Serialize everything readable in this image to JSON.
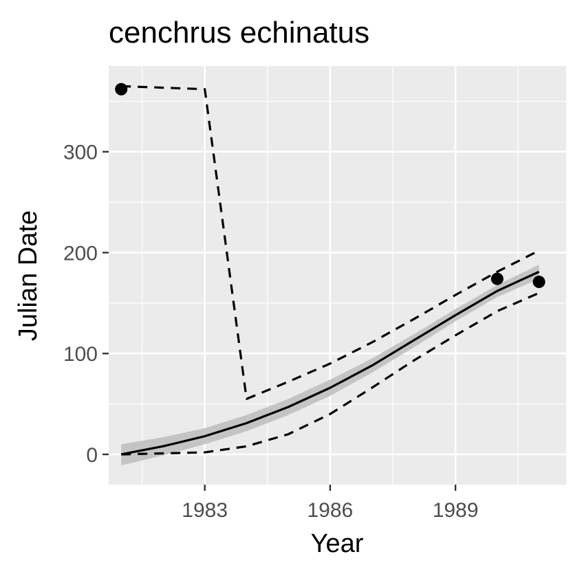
{
  "chart_data": {
    "type": "line",
    "title": "cenchrus echinatus",
    "xlabel": "Year",
    "ylabel": "Julian Date",
    "xlim": [
      1980.7,
      1991.65
    ],
    "ylim": [
      -30,
      385
    ],
    "x_ticks": [
      1983,
      1986,
      1989
    ],
    "x_tick_labels": [
      "1983",
      "1986",
      "1989"
    ],
    "y_ticks": [
      0,
      100,
      200,
      300
    ],
    "y_tick_labels": [
      "0",
      "100",
      "200",
      "300"
    ],
    "grid": true,
    "legend": "none",
    "colors": {
      "panel": "#ebebeb",
      "grid": "#ffffff",
      "line": "#000000",
      "ribbon": "#bdbdbd",
      "tick_text": "#4d4d4d"
    },
    "points": {
      "name": "observed",
      "x": [
        1981,
        1990,
        1991
      ],
      "y": [
        362,
        174,
        171
      ]
    },
    "series": [
      {
        "name": "fit",
        "style": "solid",
        "x": [
          1981,
          1982,
          1983,
          1984,
          1985,
          1986,
          1987,
          1988,
          1989,
          1990,
          1991
        ],
        "y": [
          0,
          8,
          18,
          31,
          47,
          66,
          88,
          113,
          138,
          162,
          181
        ]
      },
      {
        "name": "upper",
        "style": "dashed",
        "x": [
          1981,
          1983,
          1984,
          1985,
          1986,
          1987,
          1988,
          1989,
          1990,
          1991
        ],
        "y": [
          365,
          362,
          55,
          72,
          90,
          111,
          134,
          158,
          181,
          202
        ]
      },
      {
        "name": "lower",
        "style": "dashed",
        "x": [
          1981,
          1982,
          1983,
          1984,
          1985,
          1986,
          1987,
          1988,
          1989,
          1990,
          1991
        ],
        "y": [
          0,
          1,
          2,
          8,
          20,
          40,
          66,
          93,
          118,
          142,
          160
        ]
      }
    ],
    "ribbon": {
      "x": [
        1981,
        1982,
        1983,
        1984,
        1985,
        1986,
        1987,
        1988,
        1989,
        1990,
        1991
      ],
      "lower": [
        -11,
        -1,
        10,
        23,
        39,
        58,
        81,
        106,
        132,
        156,
        174
      ],
      "upper": [
        10,
        17,
        26,
        39,
        55,
        74,
        95,
        119,
        144,
        168,
        188
      ]
    }
  }
}
